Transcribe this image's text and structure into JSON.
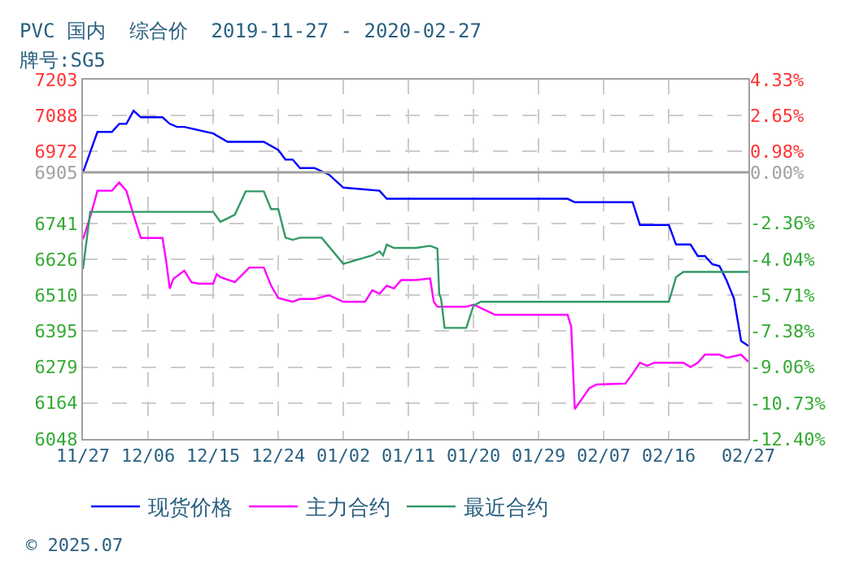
{
  "chart_data": {
    "type": "line",
    "title": "PVC 国内  综合价  2019-11-27 - 2020-02-27",
    "subtitle": "牌号:SG5",
    "series": [
      {
        "name": "现货价格",
        "color": "#0000ff",
        "x": [
          "2019-11-27",
          "2019-11-29",
          "2019-12-01",
          "2019-12-02",
          "2019-12-03",
          "2019-12-04",
          "2019-12-05",
          "2019-12-08",
          "2019-12-09",
          "2019-12-10",
          "2019-12-11",
          "2019-12-15",
          "2019-12-17",
          "2019-12-22",
          "2019-12-24",
          "2019-12-25",
          "2019-12-26",
          "2019-12-27",
          "2019-12-29",
          "2019-12-31",
          "2020-01-02",
          "2020-01-07",
          "2020-01-08",
          "2020-02-02",
          "2020-02-03",
          "2020-02-11",
          "2020-02-12",
          "2020-02-16",
          "2020-02-17",
          "2020-02-19",
          "2020-02-20",
          "2020-02-21",
          "2020-02-22",
          "2020-02-23",
          "2020-02-24",
          "2020-02-25",
          "2020-02-26",
          "2020-02-27"
        ],
        "values": [
          6905,
          7035,
          7035,
          7061,
          7061,
          7103,
          7082,
          7082,
          7061,
          7051,
          7051,
          7030,
          7003,
          7003,
          6977,
          6946,
          6946,
          6919,
          6919,
          6898,
          6856,
          6846,
          6820,
          6820,
          6809,
          6809,
          6736,
          6736,
          6673,
          6673,
          6636,
          6636,
          6610,
          6604,
          6557,
          6500,
          6363,
          6347
        ]
      },
      {
        "name": "主力合约",
        "color": "#ff00ff",
        "x": [
          "2019-11-27",
          "2019-11-28",
          "2019-11-29",
          "2019-12-01",
          "2019-12-02",
          "2019-12-03",
          "2019-12-04",
          "2019-12-05",
          "2019-12-08",
          "2019-12-08T12:00",
          "2019-12-09",
          "2019-12-09T12:00",
          "2019-12-11",
          "2019-12-12",
          "2019-12-13",
          "2019-12-15",
          "2019-12-15T12:00",
          "2019-12-16",
          "2019-12-18",
          "2019-12-20",
          "2019-12-22",
          "2019-12-23",
          "2019-12-24",
          "2019-12-26",
          "2019-12-27",
          "2019-12-29",
          "2019-12-31",
          "2020-01-02",
          "2020-01-05",
          "2020-01-06",
          "2020-01-07",
          "2020-01-08",
          "2020-01-09",
          "2020-01-10",
          "2020-01-12",
          "2020-01-14",
          "2020-01-14T12:00",
          "2020-01-15",
          "2020-01-19",
          "2020-01-20",
          "2020-01-23",
          "2020-02-02",
          "2020-02-02T12:00",
          "2020-02-03",
          "2020-02-05",
          "2020-02-06",
          "2020-02-10",
          "2020-02-11",
          "2020-02-12",
          "2020-02-13",
          "2020-02-14",
          "2020-02-18",
          "2020-02-19",
          "2020-02-20",
          "2020-02-21",
          "2020-02-23",
          "2020-02-24",
          "2020-02-26",
          "2020-02-27"
        ],
        "values": [
          6690,
          6762,
          6846,
          6846,
          6872,
          6846,
          6767,
          6694,
          6694,
          6620,
          6531,
          6563,
          6589,
          6552,
          6547,
          6547,
          6578,
          6568,
          6552,
          6599,
          6599,
          6541,
          6501,
          6489,
          6498,
          6498,
          6510,
          6489,
          6489,
          6526,
          6515,
          6541,
          6532,
          6559,
          6559,
          6564,
          6489,
          6473,
          6473,
          6480,
          6447,
          6447,
          6410,
          6144,
          6211,
          6223,
          6226,
          6258,
          6293,
          6283,
          6293,
          6293,
          6279,
          6293,
          6319,
          6319,
          6309,
          6319,
          6296
        ]
      },
      {
        "name": "最近合约",
        "color": "#339966",
        "x": [
          "2019-11-27",
          "2019-11-28",
          "2019-12-15",
          "2019-12-16",
          "2019-12-17",
          "2019-12-18",
          "2019-12-19T12:00",
          "2019-12-22",
          "2019-12-23",
          "2019-12-24",
          "2019-12-25",
          "2019-12-26",
          "2019-12-27",
          "2019-12-30",
          "2020-01-02",
          "2020-01-06",
          "2020-01-07",
          "2020-01-07T12:00",
          "2020-01-08",
          "2020-01-09",
          "2020-01-12",
          "2020-01-14",
          "2020-01-15",
          "2020-01-15T06:00",
          "2020-01-15T12:00",
          "2020-01-16",
          "2020-01-19",
          "2020-01-20",
          "2020-01-21",
          "2020-02-16",
          "2020-02-17",
          "2020-02-18",
          "2020-02-27"
        ],
        "values": [
          6594,
          6778,
          6778,
          6746,
          6757,
          6769,
          6844,
          6844,
          6787,
          6787,
          6695,
          6688,
          6695,
          6695,
          6611,
          6638,
          6651,
          6638,
          6673,
          6662,
          6662,
          6669,
          6660,
          6515,
          6500,
          6405,
          6405,
          6477,
          6489,
          6489,
          6568,
          6585,
          6585
        ]
      }
    ],
    "xlim": [
      "2019-11-27",
      "2020-02-27"
    ],
    "xticks": [
      {
        "value": "2019-11-27",
        "label": "11/27"
      },
      {
        "value": "2019-12-06",
        "label": "12/06"
      },
      {
        "value": "2019-12-15",
        "label": "12/15"
      },
      {
        "value": "2019-12-24",
        "label": "12/24"
      },
      {
        "value": "2020-01-02",
        "label": "01/02"
      },
      {
        "value": "2020-01-11",
        "label": "01/11"
      },
      {
        "value": "2020-01-20",
        "label": "01/20"
      },
      {
        "value": "2020-01-29",
        "label": "01/29"
      },
      {
        "value": "2020-02-07",
        "label": "02/07"
      },
      {
        "value": "2020-02-16",
        "label": "02/16"
      },
      {
        "value": "2020-02-27",
        "label": "02/27"
      }
    ],
    "ylim": [
      6048,
      7203
    ],
    "yticks": [
      7203,
      7088,
      6972,
      6905,
      6741,
      6626,
      6510,
      6395,
      6279,
      6164,
      6048
    ],
    "y2lim": [
      -12.4,
      4.33
    ],
    "y2ticks": [
      {
        "value": 4.33,
        "label": "4.33%"
      },
      {
        "value": 2.65,
        "label": "2.65%"
      },
      {
        "value": 0.98,
        "label": "0.98%"
      },
      {
        "value": 0,
        "label": "0.00%"
      },
      {
        "value": -2.36,
        "label": "-2.36%"
      },
      {
        "value": -4.04,
        "label": "-4.04%"
      },
      {
        "value": -5.71,
        "label": "-5.71%"
      },
      {
        "value": -7.38,
        "label": "-7.38%"
      },
      {
        "value": -9.06,
        "label": "-9.06%"
      },
      {
        "value": -10.73,
        "label": "-10.73%"
      },
      {
        "value": -12.4,
        "label": "-12.40%"
      }
    ],
    "ref_lines": [
      {
        "axis": "y",
        "value": 6905,
        "color": "#a0a0a0"
      }
    ],
    "grid": true,
    "legend": "bottom",
    "marker": "none",
    "line_style": "solid",
    "annotations": [
      "© 2025.07"
    ]
  }
}
